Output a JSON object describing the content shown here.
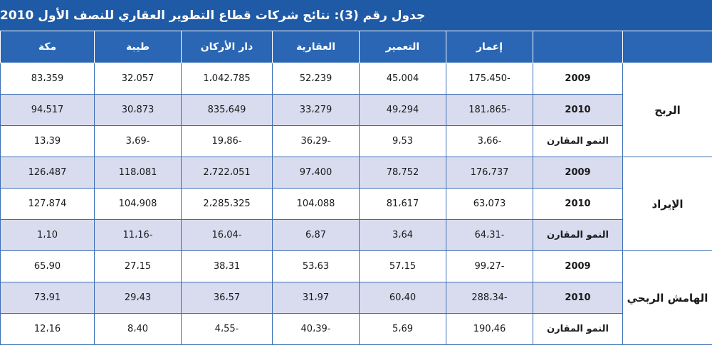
{
  "title": "جدول رقم (3): نتائج شركات قطاع التطوير العقاري للنصف الأول 2010",
  "header": {
    "columns": [
      "",
      "",
      "إعمار",
      "التعمير",
      "العقارية",
      "دار الأركان",
      "طيبة",
      "مكة"
    ]
  },
  "groups": [
    {
      "label": "الربح",
      "rows": [
        {
          "period": "2009",
          "values": [
            "175،450-",
            "45،004",
            "52،239",
            "1،042،785",
            "32،057",
            "83،359"
          ]
        },
        {
          "period": "2010",
          "values": [
            "181،865-",
            "49،294",
            "33،279",
            "835،649",
            "30،873",
            "94،517"
          ]
        },
        {
          "period": "النمو المقارن",
          "values": [
            "3،66-",
            "9،53",
            "36،29-",
            "19،86-",
            "3،69-",
            "13،39"
          ]
        }
      ]
    },
    {
      "label": "الإيراد",
      "rows": [
        {
          "period": "2009",
          "values": [
            "176،737",
            "78،752",
            "97،400",
            "2،722،051",
            "118،081",
            "126،487"
          ]
        },
        {
          "period": "2010",
          "values": [
            "63،073",
            "81،617",
            "104،088",
            "2،285،325",
            "104،908",
            "127،874"
          ]
        },
        {
          "period": "النمو المقارن",
          "values": [
            "64،31-",
            "3،64",
            "6،87",
            "16،04-",
            "11،16-",
            "1،10"
          ]
        }
      ]
    },
    {
      "label": "الهامش الربحي",
      "rows": [
        {
          "period": "2009",
          "values": [
            "99،27-",
            "57،15",
            "53،63",
            "38،31",
            "27،15",
            "65،90"
          ]
        },
        {
          "period": "2010",
          "values": [
            "288،34-",
            "60،40",
            "31،97",
            "36،57",
            "29،43",
            "73،91"
          ]
        },
        {
          "period": "النمو المقارن",
          "values": [
            "190،46",
            "5،69",
            "40،39-",
            "4،55-",
            "8،40",
            "12،16"
          ]
        }
      ]
    }
  ],
  "colors": {
    "header_bg": "#2a66b3",
    "shade": "#d9dcef",
    "border": "#3c6fb5"
  }
}
